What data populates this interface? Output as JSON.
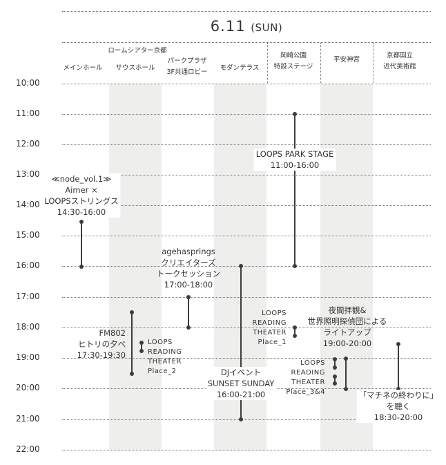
{
  "date": "6.11",
  "day": "(SUN)",
  "venues": {
    "rohm_theatre": "ロームシアター京都",
    "main_hall": "メインホール",
    "south_hall": "サウスホール",
    "park_plaza_line1": "パークプラザ",
    "park_plaza_line2": "3F共通ロビー",
    "modern_terrace": "モダンテラス",
    "okazaki_park_line1": "岡崎公園",
    "okazaki_park_line2": "特設ステージ",
    "heian_jingu": "平安神宮",
    "momak_line1": "京都国立",
    "momak_line2": "近代美術館"
  },
  "hours": [
    "10:00",
    "11:00",
    "12:00",
    "13:00",
    "14:00",
    "15:00",
    "16:00",
    "17:00",
    "18:00",
    "19:00",
    "20:00",
    "21:00",
    "22:00"
  ],
  "events": {
    "node": [
      "≪node_vol.1≫",
      "Aimer ×",
      "LOOPSストリングス",
      "14:30-16:00"
    ],
    "park_stage": [
      "LOOPS PARK STAGE",
      "11:00-16:00"
    ],
    "ageha": [
      "agehasprings",
      "クリエイターズ",
      "トークセッション",
      "17:00-18:00"
    ],
    "fm802": [
      "FM802",
      "ヒトリの夕べ",
      "17:30-19:30"
    ],
    "reading2": [
      "LOOPS",
      "READING",
      "THEATER",
      "Place_2"
    ],
    "reading1": [
      "LOOPS",
      "READING",
      "THEATER",
      "Place_1"
    ],
    "dj": [
      "DJイベント",
      "SUNSET SUNDAY",
      "16:00-21:00"
    ],
    "reading34": [
      "LOOPS",
      "READING",
      "THEATER",
      "Place_3&4"
    ],
    "lightup": [
      "夜間拝観&",
      "世界照明探偵団による",
      "ライトアップ",
      "19:00-20:00"
    ],
    "machine": [
      "「マチネの終わりに」",
      "を聴く",
      "18:30-20:00"
    ]
  }
}
